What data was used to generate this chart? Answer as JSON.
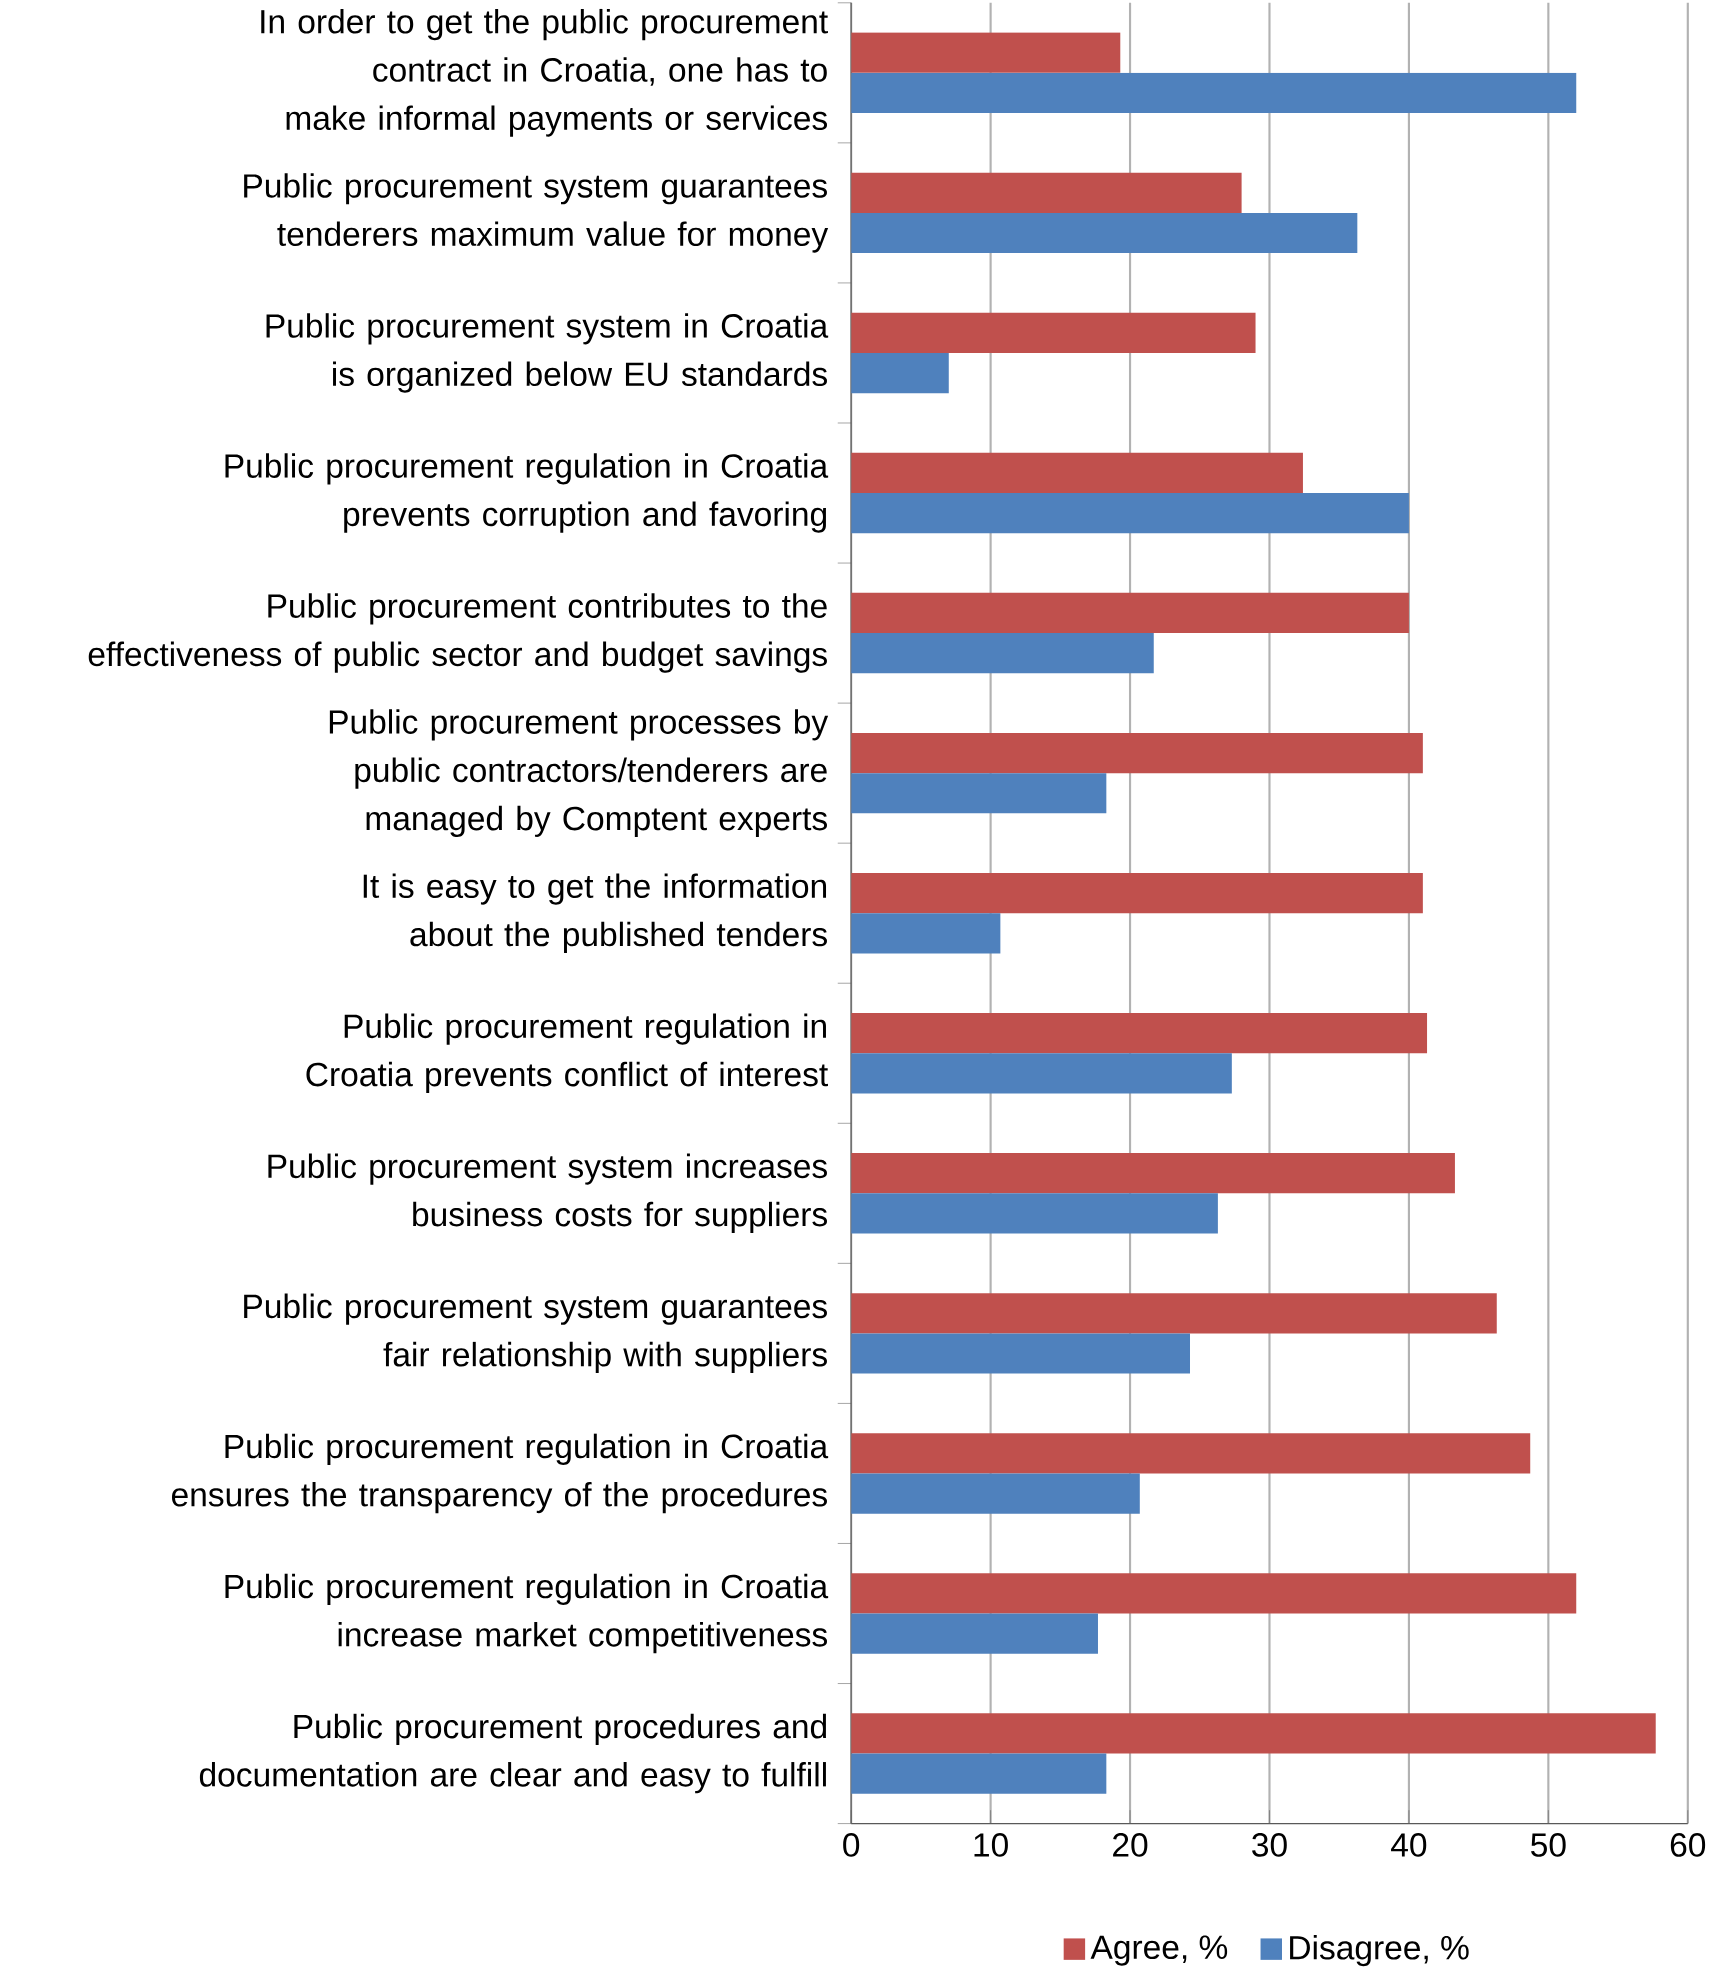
{
  "chart_data": {
    "type": "bar",
    "orientation": "horizontal",
    "categories": [
      "In order to get the public procurement contract in Croatia, one has to make informal payments or services",
      "Public procurement system guarantees tenderers maximum value for money",
      "Public procurement system in Croatia is organized below EU standards",
      "Public procurement regulation in Croatia prevents corruption and favoring",
      "Public procurement contributes to the effectiveness of public sector and budget savings",
      "Public procurement processes by public contractors/tenderers are managed by Comptent experts",
      "It is easy to get the information about the published tenders",
      "Public procurement regulation in Croatia prevents conflict of interest",
      "Public procurement system increases business costs for suppliers",
      "Public procurement system guarantees fair relationship with suppliers",
      "Public procurement regulation in Croatia ensures the transparency of the procedures",
      "Public procurement regulation in Croatia increase market competitiveness",
      "Public procurement procedures and documentation are clear and easy to fulfill"
    ],
    "series": [
      {
        "name": "Agree, %",
        "color": "#c0504d",
        "values": [
          19.3,
          28.0,
          29.0,
          32.4,
          40.0,
          41.0,
          41.0,
          41.3,
          43.3,
          46.3,
          48.7,
          52.0,
          57.7
        ]
      },
      {
        "name": "Disagree, %",
        "color": "#4f81bd",
        "values": [
          52.0,
          36.3,
          7.0,
          40.0,
          21.7,
          18.3,
          10.7,
          27.3,
          26.3,
          24.3,
          20.7,
          17.7,
          18.3
        ]
      }
    ],
    "xlim": [
      0,
      60
    ],
    "xticks": [
      0,
      10,
      20,
      30,
      40,
      50,
      60
    ],
    "grid": "x",
    "legend": "bottom"
  }
}
